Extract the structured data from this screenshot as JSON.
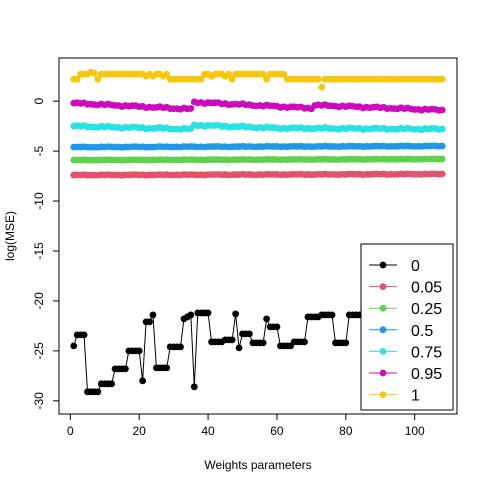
{
  "chart_data": {
    "type": "scatter",
    "xlabel": "Weights parameters",
    "ylabel": "log(MSE)",
    "xlim": [
      1,
      108
    ],
    "ylim": [
      -30,
      3
    ],
    "xticks": [
      0,
      20,
      40,
      60,
      80,
      100
    ],
    "yticks": [
      0,
      -5,
      -10,
      -15,
      -20,
      -25,
      -30
    ],
    "legend_position": "bottom-right",
    "series": [
      {
        "name": "0",
        "color": "#000000",
        "lines": true,
        "y": [
          -24.5,
          -23.4,
          -23.4,
          -23.4,
          -29.1,
          -29.1,
          -29.1,
          -29.1,
          -28.3,
          -28.3,
          -28.3,
          -28.3,
          -26.8,
          -26.8,
          -26.8,
          -26.8,
          -25.0,
          -25.0,
          -25.0,
          -25.0,
          -28.0,
          -22.1,
          -22.1,
          -21.4,
          -26.7,
          -26.7,
          -26.7,
          -26.7,
          -24.6,
          -24.6,
          -24.6,
          -24.6,
          -21.8,
          -21.6,
          -21.4,
          -28.6,
          -21.2,
          -21.2,
          -21.2,
          -21.2,
          -24.1,
          -24.1,
          -24.1,
          -24.1,
          -23.9,
          -23.9,
          -23.9,
          -21.3,
          -24.7,
          -23.3,
          -23.3,
          -23.3,
          -24.2,
          -24.2,
          -24.2,
          -24.2,
          -21.8,
          -22.6,
          -22.6,
          -22.6,
          -24.5,
          -24.5,
          -24.5,
          -24.5,
          -24.1,
          -24.1,
          -24.1,
          -24.1,
          -21.6,
          -21.6,
          -21.6,
          -21.6,
          -21.4,
          -21.4,
          -21.4,
          -21.4,
          -24.2,
          -24.2,
          -24.2,
          -24.2,
          -21.4,
          -21.4,
          -21.4,
          -21.4,
          -21.4,
          -21.4,
          -21.4,
          -21.4,
          -24.2,
          -24.2,
          -24.2,
          -24.2,
          -21.7,
          -21.7,
          -21.7,
          -21.7,
          -21.7,
          -21.7,
          -21.7,
          -21.7,
          -21.7,
          -21.7,
          -21.7,
          -21.7,
          -21.7,
          -21.7,
          -21.7,
          -21.7
        ]
      },
      {
        "name": "0.05",
        "color": "#DF536B",
        "lines": false,
        "y_start": -7.4,
        "y_end": -7.3,
        "jitter": 0.04
      },
      {
        "name": "0.25",
        "color": "#61D04F",
        "lines": false,
        "y_start": -5.9,
        "y_end": -5.8,
        "jitter": 0.03
      },
      {
        "name": "0.5",
        "color": "#2297E6",
        "lines": false,
        "y_start": -4.6,
        "y_end": -4.5,
        "jitter": 0.04
      },
      {
        "name": "0.75",
        "color": "#28E2E5",
        "lines": false,
        "y_segments": [
          [
            1,
            -2.5,
            35,
            -2.8
          ],
          [
            36,
            -2.4,
            60,
            -2.7
          ],
          [
            61,
            -2.7,
            108,
            -2.8
          ]
        ],
        "jitter": 0.1
      },
      {
        "name": "0.95",
        "color": "#CD0BBC",
        "lines": false,
        "y_segments": [
          [
            1,
            -0.2,
            35,
            -0.8
          ],
          [
            36,
            -0.1,
            70,
            -0.7
          ],
          [
            71,
            -0.4,
            108,
            -0.9
          ]
        ],
        "jitter": 0.1
      },
      {
        "name": "1",
        "color": "#F5C710",
        "lines": false,
        "y": [
          2.2,
          2.2,
          2.7,
          2.7,
          2.7,
          2.9,
          2.8,
          2.2,
          2.7,
          2.7,
          2.7,
          2.7,
          2.7,
          2.7,
          2.7,
          2.7,
          2.7,
          2.7,
          2.7,
          2.7,
          2.7,
          2.5,
          2.7,
          2.5,
          2.7,
          2.7,
          2.5,
          2.7,
          2.2,
          2.2,
          2.2,
          2.2,
          2.2,
          2.2,
          2.2,
          2.2,
          2.2,
          2.2,
          2.7,
          2.7,
          2.5,
          2.7,
          2.7,
          2.7,
          2.5,
          2.7,
          2.2,
          2.7,
          2.7,
          2.7,
          2.7,
          2.7,
          2.7,
          2.7,
          2.7,
          2.7,
          2.2,
          2.7,
          2.7,
          2.7,
          2.7,
          2.7,
          2.2,
          2.2,
          2.2,
          2.2,
          2.2,
          2.2,
          2.2,
          2.2,
          2.2,
          2.2,
          1.4,
          2.2,
          2.2,
          2.2,
          2.2,
          2.2,
          2.2,
          2.2,
          2.2,
          2.2,
          2.2,
          2.2,
          2.2,
          2.2,
          2.2,
          2.2,
          2.2,
          2.2,
          2.2,
          2.2,
          2.2,
          2.2,
          2.2,
          2.2,
          2.2,
          2.2,
          2.2,
          2.2,
          2.2,
          2.2,
          2.2,
          2.2,
          2.2,
          2.2,
          2.2,
          2.2
        ]
      }
    ]
  }
}
